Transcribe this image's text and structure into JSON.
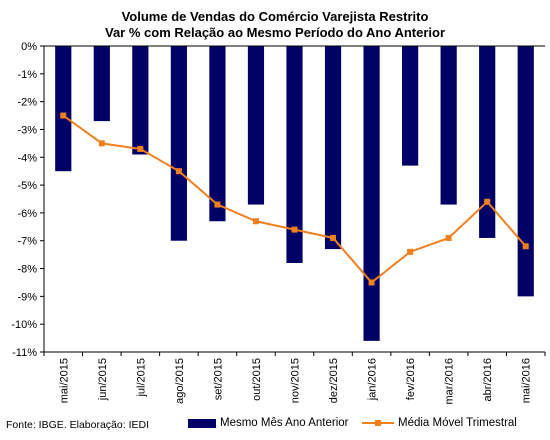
{
  "chart_data": {
    "type": "bar",
    "title": "Volume de Vendas do Comércio Varejista Restrito",
    "subtitle": "Var % com Relação ao Mesmo Período do Ano Anterior",
    "categories": [
      "mai/2015",
      "jun/2015",
      "jul/2015",
      "ago/2015",
      "set/2015",
      "out/2015",
      "nov/2015",
      "dez/2015",
      "jan/2016",
      "fev/2016",
      "mar/2016",
      "abr/2016",
      "mai/2016"
    ],
    "series": [
      {
        "name": "Mesmo Mês Ano Anterior",
        "type": "bar",
        "color": "#000066",
        "values": [
          -4.5,
          -2.7,
          -3.9,
          -7.0,
          -6.3,
          -5.7,
          -7.8,
          -7.3,
          -10.6,
          -4.3,
          -5.7,
          -6.9,
          -9.0
        ]
      },
      {
        "name": "Média Móvel Trimestral",
        "type": "line",
        "color": "#f07f1e",
        "values": [
          -2.5,
          -3.5,
          -3.7,
          -4.5,
          -5.7,
          -6.3,
          -6.6,
          -6.9,
          -8.5,
          -7.4,
          -6.9,
          -5.6,
          -7.2
        ]
      }
    ],
    "ylim": [
      -11,
      0
    ],
    "yticks": [
      "0%",
      "-1%",
      "-2%",
      "-3%",
      "-4%",
      "-5%",
      "-6%",
      "-7%",
      "-8%",
      "-9%",
      "-10%",
      "-11%"
    ],
    "grid": false,
    "legend_position": "bottom"
  },
  "source": "Fonte: IBGE. Elaboração: IEDI"
}
